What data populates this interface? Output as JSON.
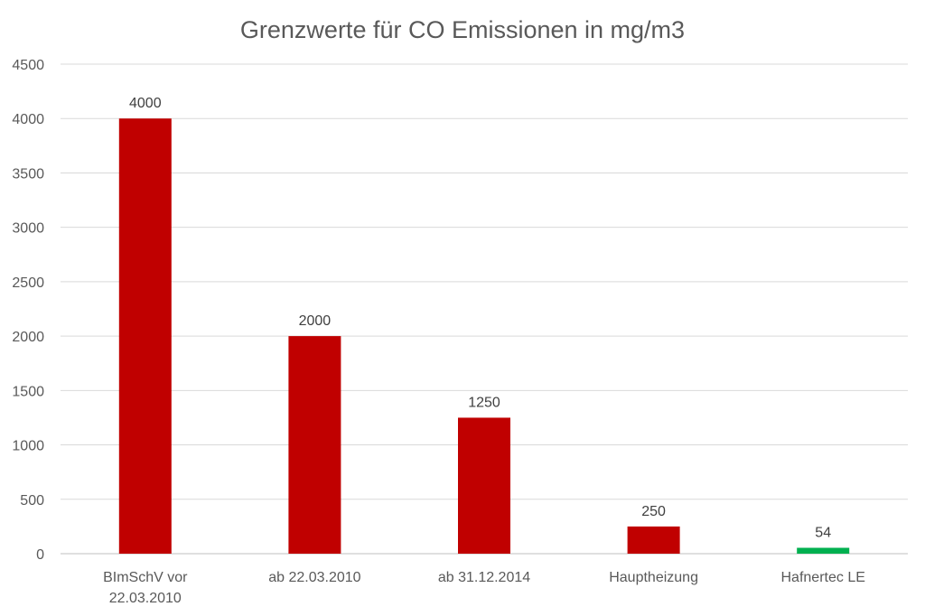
{
  "chart_data": {
    "type": "bar",
    "title": "Grenzwerte für CO Emissionen in mg/m3",
    "xlabel": "",
    "ylabel": "",
    "categories": [
      [
        "BImSchV vor",
        "22.03.2010"
      ],
      [
        "ab 22.03.2010"
      ],
      [
        "ab 31.12.2014"
      ],
      [
        "Hauptheizung"
      ],
      [
        "Hafnertec LE"
      ]
    ],
    "values": [
      4000,
      2000,
      1250,
      250,
      54
    ],
    "data_labels": [
      "4000",
      "2000",
      "1250",
      "250",
      "54"
    ],
    "bar_colors": [
      "#c00000",
      "#c00000",
      "#c00000",
      "#c00000",
      "#00b050"
    ],
    "ylim": [
      0,
      4500
    ],
    "yticks": [
      0,
      500,
      1000,
      1500,
      2000,
      2500,
      3000,
      3500,
      4000,
      4500
    ],
    "grid": true,
    "legend": "none",
    "colors": {
      "gridline": "#d9d9d9",
      "axis": "#bfbfbf",
      "text": "#595959"
    }
  }
}
